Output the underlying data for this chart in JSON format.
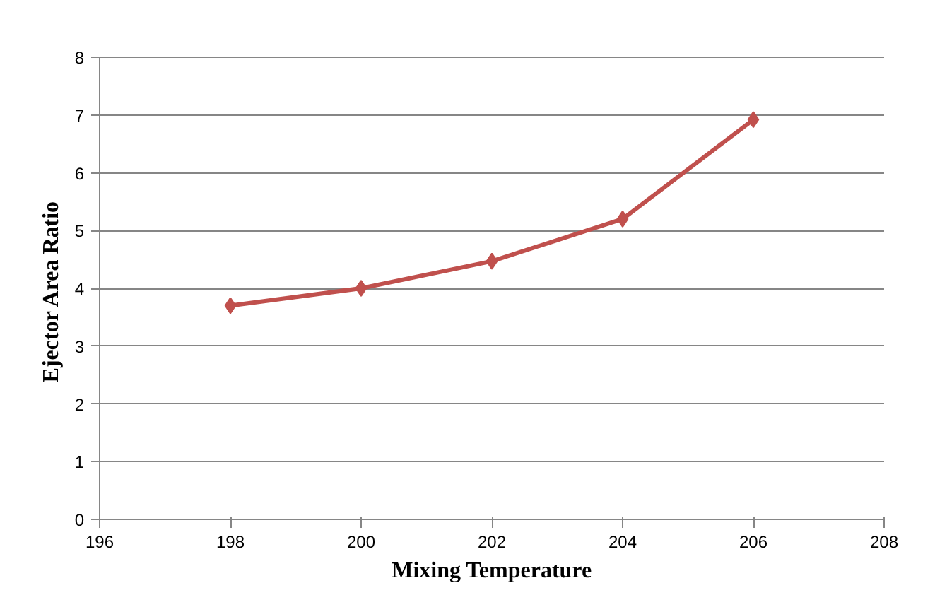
{
  "chart_data": {
    "type": "line",
    "xlabel": "Mixing Temperature",
    "ylabel": "Ejector Area  Ratio",
    "x": [
      198,
      200,
      202,
      204,
      206
    ],
    "series": [
      {
        "color": "#c0504d",
        "values": [
          3.7,
          4.0,
          4.47,
          5.2,
          6.92
        ]
      }
    ],
    "xlim": [
      196,
      208
    ],
    "xticks": [
      196,
      198,
      200,
      202,
      204,
      206,
      208
    ],
    "ylim": [
      0,
      8
    ],
    "yticks": [
      0,
      1,
      2,
      3,
      4,
      5,
      6,
      7,
      8
    ],
    "grid": "y",
    "marker": "diamond",
    "line_style": "solid"
  }
}
